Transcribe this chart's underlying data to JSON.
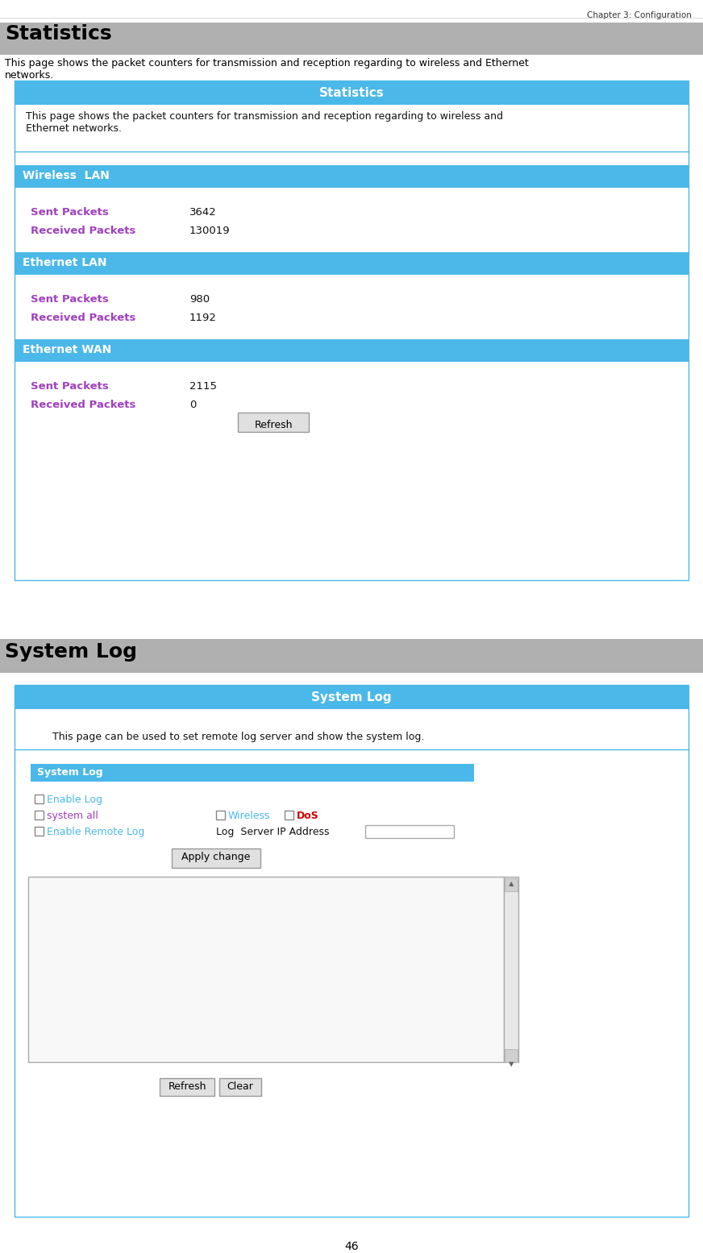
{
  "page_title": "Chapter 3: Configuration",
  "section1_title": "Statistics",
  "section1_desc": "This page shows the packet counters for transmission and reception regarding to wireless and Ethernet\nnetworks.",
  "stats_panel_title": "Statistics",
  "stats_panel_desc": "This page shows the packet counters for transmission and reception regarding to wireless and\nEthernet networks.",
  "wireless_lan_header": "Wireless  LAN",
  "wireless_sent_label": "Sent Packets",
  "wireless_sent_value": "3642",
  "wireless_recv_label": "Received Packets",
  "wireless_recv_value": "130019",
  "ethernet_lan_header": "Ethernet LAN",
  "ethernet_lan_sent_label": "Sent Packets",
  "ethernet_lan_sent_value": "980",
  "ethernet_lan_recv_label": "Received Packets",
  "ethernet_lan_recv_value": "1192",
  "ethernet_wan_header": "Ethernet WAN",
  "ethernet_wan_sent_label": "Sent Packets",
  "ethernet_wan_sent_value": "2115",
  "ethernet_wan_recv_label": "Received Packets",
  "ethernet_wan_recv_value": "0",
  "refresh_btn": "Refresh",
  "section2_title": "System Log",
  "syslog_panel_title": "System Log",
  "syslog_panel_desc": "This page can be used to set remote log server and show the system log.",
  "syslog_inner_header": "System Log",
  "syslog_enable_log": "Enable Log",
  "syslog_system_all": "system all",
  "syslog_wireless": "Wireless",
  "syslog_dos": "DoS",
  "syslog_enable_remote": "Enable Remote Log",
  "syslog_server_label": "Log  Server IP Address",
  "apply_btn": "Apply change",
  "refresh_btn2": "Refresh",
  "clear_btn": "Clear",
  "page_number": "46",
  "bg_color": "#ffffff",
  "header_blue": "#4ab8e8",
  "section_gray": "#b0b0b0",
  "purple_label": "#a040c0",
  "white_text": "#ffffff",
  "black_text": "#000000",
  "border_blue": "#4ab8e8",
  "btn_bg": "#e0e0e0",
  "btn_border": "#999999"
}
